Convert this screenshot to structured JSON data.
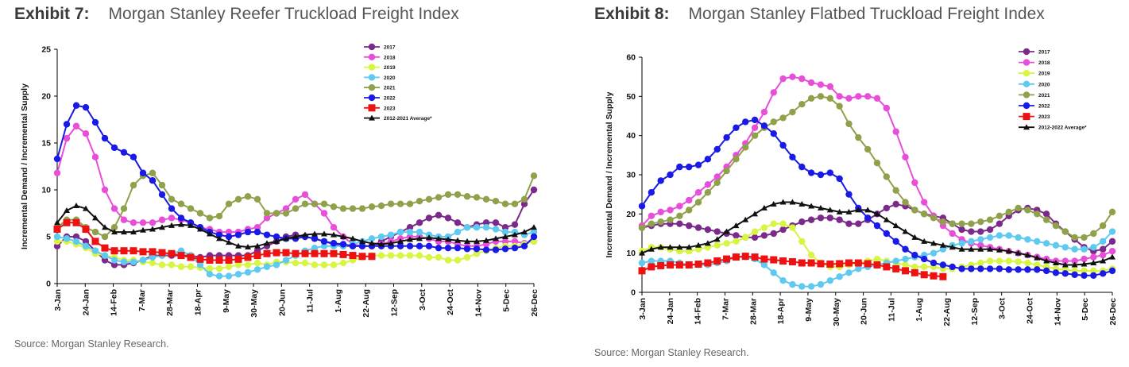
{
  "exhibits": [
    {
      "number": "Exhibit 7:",
      "title": "Morgan Stanley Reefer Truckload Freight Index",
      "source": "Source: Morgan Stanley Research."
    },
    {
      "number": "Exhibit 8:",
      "title": "Morgan Stanley Flatbed Truckload Freight Index",
      "source": "Source: Morgan Stanley Research."
    }
  ],
  "chart_data": [
    {
      "type": "line",
      "title": "Morgan Stanley Reefer Truckload Freight Index",
      "ylabel": "Incremental Demand / Incremental Supply",
      "xlabel": "",
      "ylim": [
        0,
        25
      ],
      "yticks": [
        0,
        5,
        10,
        15,
        20,
        25
      ],
      "xlabels": [
        "3-Jan",
        "24-Jan",
        "14-Feb",
        "7-Mar",
        "28-Mar",
        "18-Apr",
        "9-May",
        "30-May",
        "20-Jun",
        "11-Jul",
        "1-Aug",
        "22-Aug",
        "12-Sep",
        "3-Oct",
        "24-Oct",
        "14-Nov",
        "5-Dec",
        "26-Dec"
      ],
      "grid": false,
      "legend": "top-right",
      "series": [
        {
          "name": "2017",
          "color": "#7b2a8c",
          "values": [
            4.0,
            5.0,
            5.0,
            4.5,
            3.5,
            2.5,
            2.0,
            2.0,
            2.2,
            2.5,
            3.0,
            3.0,
            3.0,
            3.0,
            3.0,
            2.8,
            3.0,
            3.0,
            3.0,
            3.0,
            3.0,
            3.5,
            4.0,
            4.5,
            5.0,
            5.2,
            5.0,
            4.8,
            4.5,
            4.2,
            4.0,
            4.0,
            4.0,
            4.0,
            4.5,
            5.0,
            5.5,
            6.0,
            6.5,
            7.0,
            7.3,
            7.0,
            6.5,
            6.0,
            6.3,
            6.5,
            6.5,
            6.0,
            6.3,
            8.5,
            10.0
          ]
        },
        {
          "name": "2018",
          "color": "#e84fd8",
          "values": [
            11.8,
            15.5,
            16.8,
            16.0,
            13.5,
            10.0,
            8.0,
            6.8,
            6.5,
            6.5,
            6.5,
            6.8,
            7.0,
            6.8,
            6.5,
            6.0,
            5.8,
            5.5,
            5.5,
            5.5,
            5.8,
            6.0,
            7.0,
            7.5,
            8.0,
            9.0,
            9.5,
            8.5,
            7.5,
            6.0,
            5.0,
            4.2,
            4.0,
            4.0,
            4.2,
            4.5,
            4.8,
            5.0,
            5.0,
            4.8,
            4.5,
            4.5,
            4.2,
            4.0,
            4.0,
            4.2,
            4.5,
            4.5,
            4.5,
            4.3,
            4.5
          ]
        },
        {
          "name": "2019",
          "color": "#d8f542",
          "values": [
            4.5,
            4.5,
            4.2,
            3.8,
            3.2,
            3.0,
            2.8,
            2.5,
            2.5,
            2.3,
            2.2,
            2.0,
            2.0,
            1.8,
            1.8,
            1.7,
            1.6,
            1.6,
            1.8,
            2.0,
            2.0,
            2.2,
            2.0,
            2.3,
            2.3,
            2.2,
            2.2,
            2.0,
            2.0,
            2.0,
            2.2,
            2.5,
            2.8,
            3.0,
            3.0,
            3.0,
            3.0,
            3.0,
            3.0,
            2.8,
            2.8,
            2.5,
            2.5,
            2.8,
            3.2,
            3.5,
            3.8,
            4.0,
            4.0,
            4.2,
            4.5
          ]
        },
        {
          "name": "2020",
          "color": "#5fcaf0",
          "values": [
            5.0,
            4.8,
            4.5,
            4.0,
            3.5,
            3.0,
            2.5,
            2.3,
            2.3,
            2.5,
            2.8,
            3.0,
            3.2,
            3.5,
            3.0,
            2.0,
            1.0,
            0.8,
            0.8,
            1.0,
            1.2,
            1.5,
            1.8,
            2.0,
            2.5,
            3.0,
            3.5,
            3.8,
            4.0,
            4.0,
            4.0,
            4.2,
            4.5,
            4.8,
            5.0,
            5.2,
            5.5,
            5.5,
            5.5,
            5.2,
            5.0,
            5.0,
            5.5,
            6.0,
            6.0,
            6.0,
            5.8,
            5.5,
            5.5,
            5.2,
            5.5
          ]
        },
        {
          "name": "2021",
          "color": "#8fa14a",
          "values": [
            6.0,
            6.8,
            6.8,
            6.0,
            5.5,
            5.0,
            6.0,
            8.0,
            10.5,
            11.5,
            11.8,
            10.5,
            9.0,
            8.5,
            8.0,
            7.5,
            7.0,
            7.2,
            8.5,
            9.0,
            9.3,
            9.0,
            7.5,
            7.5,
            7.5,
            8.0,
            8.5,
            8.5,
            8.5,
            8.2,
            8.0,
            8.0,
            8.0,
            8.2,
            8.3,
            8.5,
            8.5,
            8.5,
            8.8,
            9.0,
            9.2,
            9.5,
            9.5,
            9.3,
            9.2,
            9.0,
            8.8,
            8.5,
            8.5,
            9.0,
            11.5
          ]
        },
        {
          "name": "2022",
          "color": "#1a1ae6",
          "values": [
            13.3,
            17.0,
            19.0,
            18.8,
            17.2,
            15.5,
            14.5,
            14.0,
            13.5,
            11.8,
            11.0,
            9.5,
            8.0,
            7.0,
            6.5,
            6.0,
            5.5,
            5.2,
            5.0,
            5.2,
            5.5,
            5.5,
            5.2,
            5.0,
            4.8,
            4.8,
            5.0,
            4.8,
            4.5,
            4.3,
            4.2,
            4.0,
            4.0,
            4.0,
            4.0,
            4.0,
            4.0,
            4.0,
            4.0,
            4.0,
            3.8,
            3.8,
            3.8,
            3.7,
            3.7,
            3.6,
            3.6,
            3.7,
            3.8,
            4.0,
            5.0
          ]
        },
        {
          "name": "2023",
          "color": "#ee1111",
          "values": [
            5.8,
            6.5,
            6.5,
            5.8,
            4.5,
            3.8,
            3.5,
            3.5,
            3.5,
            3.4,
            3.4,
            3.3,
            3.2,
            3.0,
            2.8,
            2.6,
            2.5,
            2.5,
            2.5,
            2.6,
            2.8,
            3.0,
            3.2,
            3.3,
            3.3,
            3.2,
            3.2,
            3.2,
            3.2,
            3.2,
            3.1,
            3.0,
            2.9,
            2.9
          ]
        },
        {
          "name": "2012-2021 Average*",
          "color": "#111111",
          "values": [
            6.5,
            7.8,
            8.3,
            8.0,
            7.0,
            6.0,
            5.5,
            5.5,
            5.5,
            5.7,
            5.8,
            6.0,
            6.2,
            6.3,
            6.2,
            5.8,
            5.3,
            4.8,
            4.4,
            4.0,
            3.9,
            4.0,
            4.3,
            4.5,
            4.8,
            5.0,
            5.2,
            5.3,
            5.3,
            5.2,
            5.0,
            4.8,
            4.5,
            4.3,
            4.2,
            4.3,
            4.5,
            4.7,
            4.8,
            4.9,
            4.8,
            4.7,
            4.6,
            4.5,
            4.5,
            4.6,
            4.8,
            5.0,
            5.2,
            5.5,
            6.0
          ]
        }
      ]
    },
    {
      "type": "line",
      "title": "Morgan Stanley Flatbed Truckload Freight Index",
      "ylabel": "Incremental Demand / Incremental Supply",
      "xlabel": "",
      "ylim": [
        0,
        60
      ],
      "yticks": [
        0,
        10,
        20,
        30,
        40,
        50,
        60
      ],
      "xlabels": [
        "3-Jan",
        "24-Jan",
        "14-Feb",
        "7-Mar",
        "28-Mar",
        "18-Apr",
        "9-May",
        "30-May",
        "20-Jun",
        "11-Jul",
        "1-Aug",
        "22-Aug",
        "12-Sep",
        "3-Oct",
        "24-Oct",
        "14-Nov",
        "5-Dec",
        "26-Dec"
      ],
      "grid": false,
      "legend": "top-right",
      "series": [
        {
          "name": "2017",
          "color": "#7b2a8c",
          "values": [
            16.5,
            17.0,
            17.5,
            17.5,
            17.5,
            17.0,
            16.5,
            16.0,
            15.5,
            15.0,
            14.5,
            14.0,
            14.0,
            14.5,
            15.0,
            16.0,
            17.0,
            18.0,
            18.5,
            19.0,
            19.0,
            18.5,
            17.5,
            17.5,
            18.5,
            20.0,
            21.5,
            22.5,
            22.0,
            21.0,
            20.0,
            19.5,
            19.0,
            17.5,
            16.0,
            15.5,
            15.5,
            16.0,
            17.5,
            19.5,
            21.0,
            21.5,
            21.0,
            20.0,
            17.5,
            15.5,
            13.5,
            11.5,
            10.5,
            11.0,
            13.0
          ]
        },
        {
          "name": "2018",
          "color": "#e84fd8",
          "values": [
            17.0,
            19.5,
            20.5,
            21.0,
            22.0,
            23.5,
            25.5,
            27.5,
            29.5,
            32.0,
            35.0,
            38.0,
            42.0,
            46.0,
            51.0,
            54.5,
            55.0,
            54.5,
            53.5,
            53.0,
            52.5,
            50.0,
            49.5,
            50.0,
            50.0,
            49.5,
            47.0,
            41.0,
            34.5,
            28.0,
            23.0,
            19.5,
            17.0,
            15.0,
            13.5,
            12.5,
            12.0,
            11.5,
            11.0,
            10.5,
            10.0,
            9.5,
            9.0,
            8.5,
            8.0,
            8.0,
            8.0,
            8.5,
            9.0,
            9.5,
            10.5
          ]
        },
        {
          "name": "2019",
          "color": "#d8f542",
          "values": [
            10.5,
            11.5,
            11.5,
            11.0,
            10.5,
            10.5,
            11.0,
            11.5,
            12.0,
            12.5,
            13.0,
            14.0,
            15.5,
            16.5,
            17.5,
            17.5,
            16.5,
            13.0,
            9.5,
            7.5,
            6.5,
            6.5,
            7.0,
            7.5,
            8.0,
            8.5,
            8.0,
            7.5,
            7.0,
            6.5,
            6.5,
            6.5,
            6.0,
            6.0,
            6.5,
            7.0,
            7.5,
            8.0,
            8.0,
            8.0,
            7.8,
            7.5,
            7.0,
            6.5,
            6.0,
            5.8,
            5.5,
            5.5,
            5.5,
            5.5,
            6.0
          ]
        },
        {
          "name": "2020",
          "color": "#5fcaf0",
          "values": [
            7.5,
            8.0,
            8.0,
            8.0,
            7.5,
            7.0,
            7.0,
            7.0,
            7.5,
            8.0,
            9.0,
            9.0,
            8.5,
            7.0,
            5.0,
            3.0,
            2.0,
            1.5,
            1.5,
            2.0,
            3.0,
            4.0,
            5.0,
            6.0,
            6.5,
            7.0,
            7.5,
            8.0,
            8.5,
            9.0,
            9.5,
            10.0,
            11.0,
            12.0,
            12.5,
            13.0,
            13.5,
            14.0,
            14.5,
            14.5,
            14.0,
            13.5,
            13.0,
            12.5,
            12.0,
            11.5,
            11.0,
            11.0,
            11.5,
            13.0,
            15.5
          ]
        },
        {
          "name": "2021",
          "color": "#8fa14a",
          "values": [
            16.5,
            17.5,
            18.0,
            18.5,
            19.5,
            21.0,
            23.0,
            25.5,
            28.0,
            31.0,
            34.0,
            37.0,
            40.0,
            42.0,
            43.5,
            44.5,
            46.0,
            48.0,
            49.5,
            50.0,
            49.5,
            47.5,
            43.0,
            39.5,
            36.5,
            33.0,
            29.5,
            26.0,
            23.0,
            21.0,
            20.0,
            19.0,
            18.0,
            17.5,
            17.5,
            17.5,
            18.0,
            18.5,
            19.5,
            20.5,
            21.5,
            21.0,
            20.0,
            18.5,
            17.0,
            15.5,
            14.0,
            14.0,
            15.0,
            17.0,
            20.5
          ]
        },
        {
          "name": "2022",
          "color": "#1a1ae6",
          "values": [
            22.0,
            25.5,
            28.5,
            30.0,
            32.0,
            32.0,
            32.5,
            34.0,
            36.5,
            39.5,
            42.0,
            43.5,
            44.0,
            42.5,
            40.5,
            37.5,
            34.5,
            32.0,
            30.5,
            30.0,
            30.5,
            29.0,
            25.0,
            21.5,
            19.0,
            17.0,
            15.0,
            13.0,
            11.0,
            9.5,
            8.5,
            7.5,
            7.0,
            6.5,
            6.0,
            6.0,
            6.0,
            6.0,
            6.0,
            5.8,
            5.8,
            5.8,
            5.8,
            5.5,
            5.0,
            4.8,
            4.5,
            4.3,
            4.3,
            4.8,
            5.5
          ]
        },
        {
          "name": "2023",
          "color": "#ee1111",
          "values": [
            5.5,
            6.5,
            6.8,
            7.0,
            7.0,
            7.0,
            7.2,
            7.5,
            8.0,
            8.5,
            9.0,
            9.2,
            9.0,
            8.5,
            8.3,
            8.0,
            7.8,
            7.5,
            7.5,
            7.3,
            7.2,
            7.3,
            7.5,
            7.5,
            7.3,
            7.0,
            6.5,
            6.0,
            5.5,
            5.0,
            4.5,
            4.2,
            4.0
          ]
        },
        {
          "name": "2012-2022 Average*",
          "color": "#111111",
          "values": [
            10.0,
            11.0,
            11.5,
            11.5,
            11.5,
            11.5,
            12.0,
            12.5,
            13.5,
            15.5,
            17.0,
            18.5,
            20.0,
            21.5,
            22.5,
            23.0,
            23.0,
            22.5,
            22.0,
            21.5,
            21.0,
            20.5,
            20.5,
            21.0,
            21.0,
            20.0,
            18.5,
            17.0,
            15.5,
            14.0,
            13.0,
            12.5,
            12.0,
            11.5,
            11.0,
            11.0,
            11.0,
            11.0,
            10.8,
            10.5,
            10.0,
            9.5,
            8.8,
            8.0,
            7.5,
            7.0,
            7.0,
            7.2,
            7.5,
            8.0,
            9.0
          ]
        }
      ]
    }
  ]
}
